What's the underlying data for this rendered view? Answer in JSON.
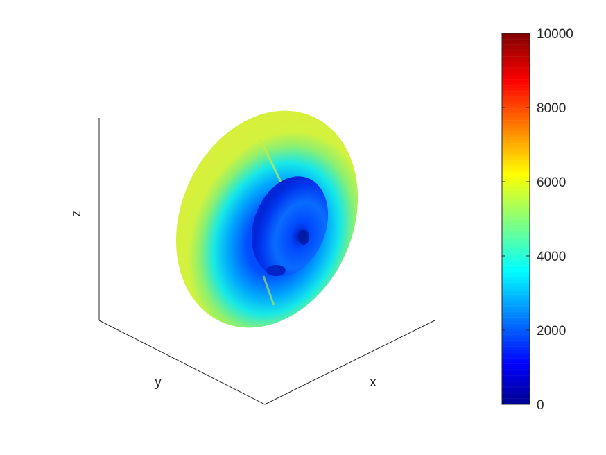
{
  "chart_data": {
    "type": "surface3d",
    "xlabel": "x",
    "ylabel": "y",
    "zlabel": "z",
    "colormap": "jet",
    "colorbar": {
      "range": [
        0,
        10000
      ],
      "ticks": [
        0,
        2000,
        4000,
        6000,
        8000,
        10000
      ],
      "tick_labels": [
        "0",
        "2000",
        "4000",
        "6000",
        "8000",
        "10000"
      ],
      "placement": "right"
    },
    "surface": {
      "outer_rim_value": 5700,
      "mid_ring_value": 3800,
      "inner_ring_value": 1500,
      "center_value": 2300,
      "core_value": 600
    },
    "grid": false
  }
}
